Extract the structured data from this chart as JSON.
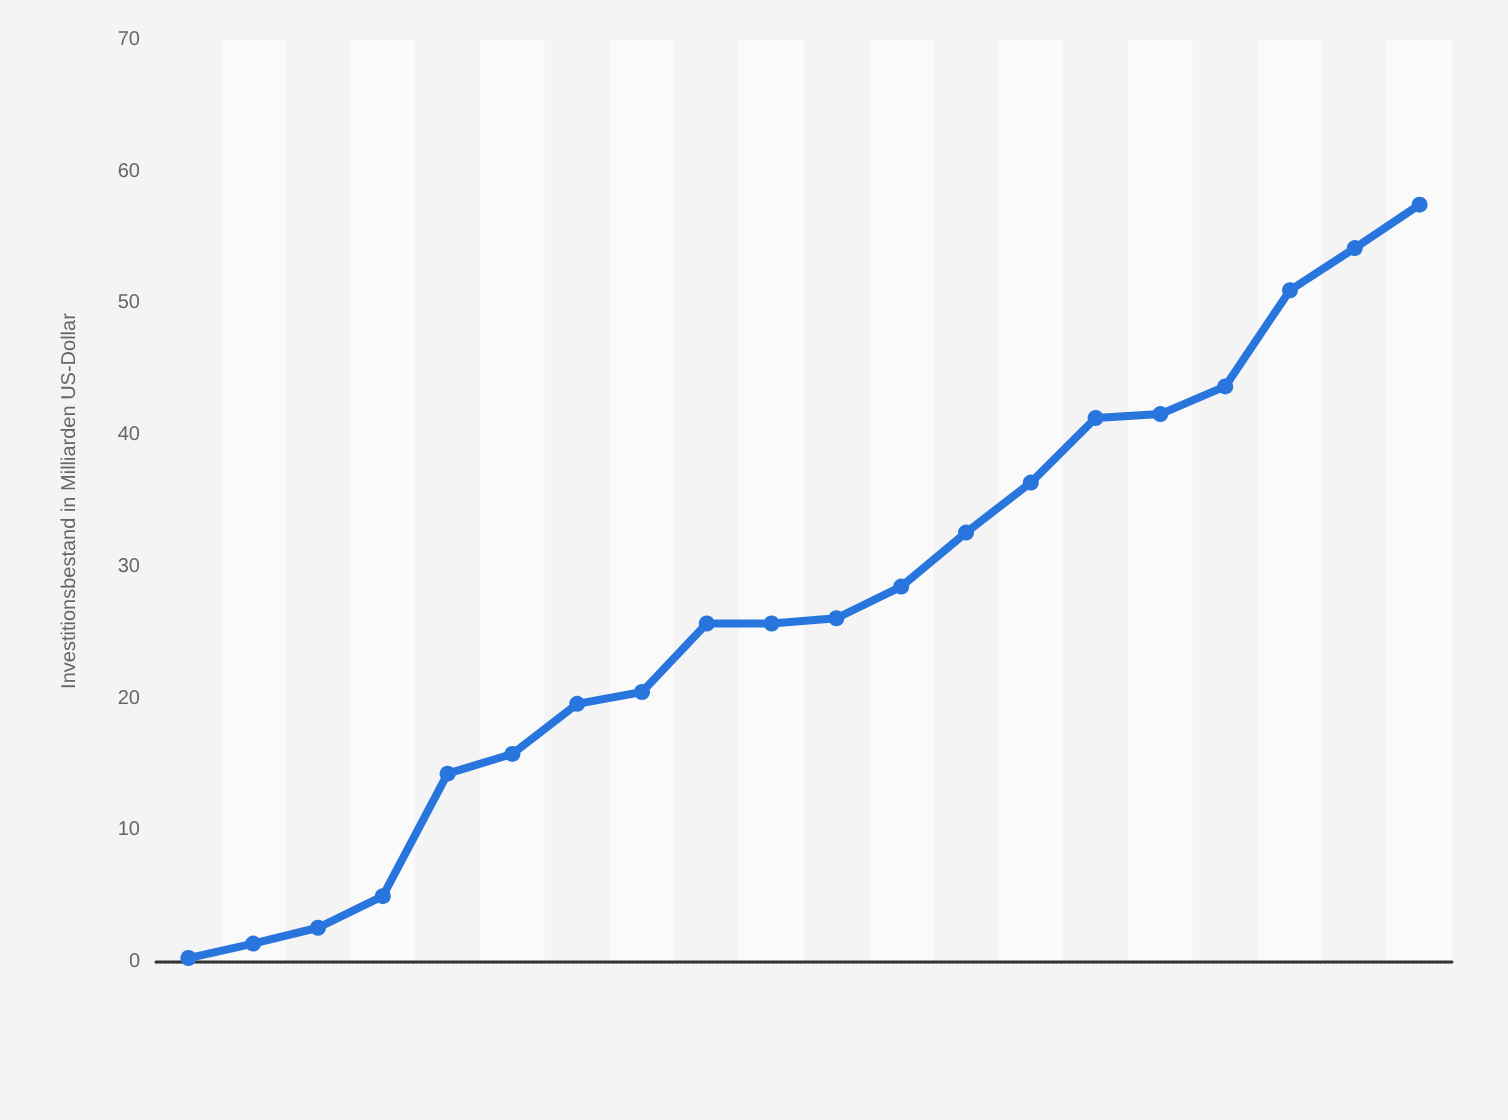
{
  "chart_data": {
    "type": "line",
    "ylabel": "Investitionsbestand in Milliarden US-Dollar",
    "categories": [
      null,
      null,
      null,
      null,
      null,
      null,
      null,
      null,
      null,
      null,
      null,
      null,
      null,
      null,
      null,
      null,
      null,
      null,
      null,
      null
    ],
    "series": [
      {
        "color": "#2876dd",
        "values": [
          0.3,
          1.4,
          2.6,
          5.0,
          14.3,
          15.8,
          19.6,
          20.5,
          25.7,
          25.7,
          26.1,
          28.5,
          32.6,
          36.4,
          41.3,
          41.6,
          43.7,
          51.0,
          54.2,
          57.5
        ]
      }
    ],
    "ylim": [
      0,
      70
    ],
    "yticks": [
      0,
      10,
      20,
      30,
      40,
      50,
      60,
      70
    ],
    "grid": "y",
    "marker": "circle",
    "line_style": "solid"
  }
}
